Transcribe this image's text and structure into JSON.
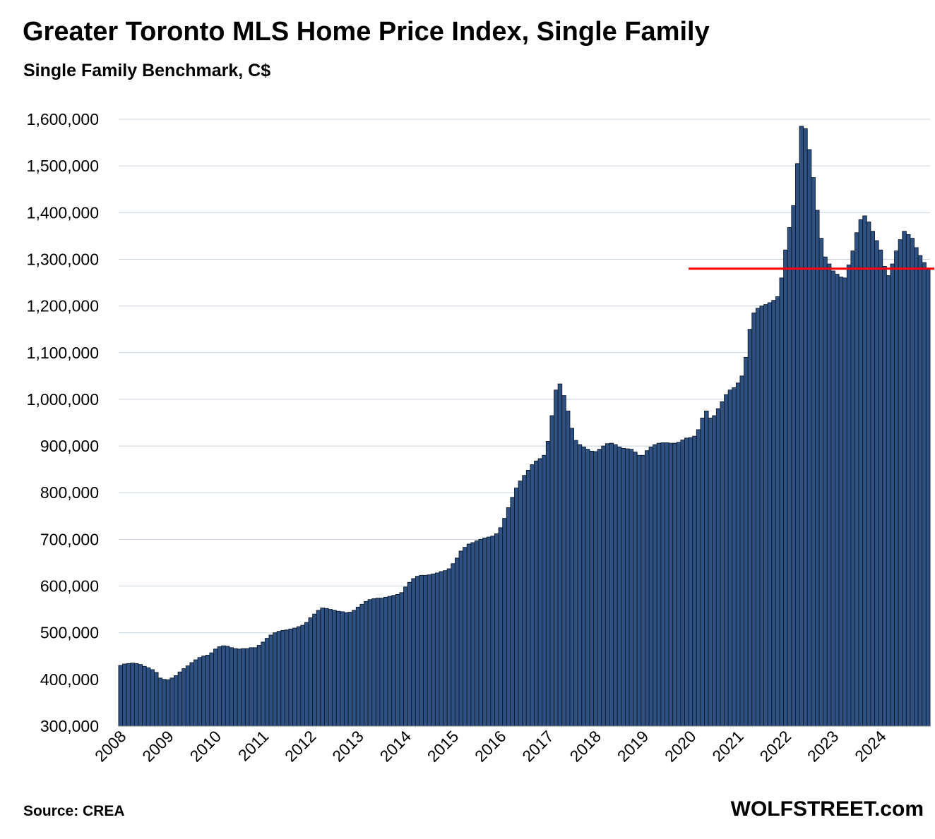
{
  "title": "Greater Toronto MLS Home Price Index, Single Family",
  "subtitle": "Single Family Benchmark, C$",
  "source": "Source: CREA",
  "brand": "WOLFSTREET.com",
  "colors": {
    "bar": "#2e5182",
    "bar_edge": "#0d1a2b",
    "grid": "#c8d3de",
    "reference_line": "#ff0000"
  },
  "chart_data": {
    "type": "bar",
    "ylim": [
      300000,
      1600000
    ],
    "yticks": [
      300000,
      400000,
      500000,
      600000,
      700000,
      800000,
      900000,
      1000000,
      1100000,
      1200000,
      1300000,
      1400000,
      1500000,
      1600000
    ],
    "ytick_labels": [
      "300,000",
      "400,000",
      "500,000",
      "600,000",
      "700,000",
      "800,000",
      "900,000",
      "1,000,000",
      "1,100,000",
      "1,200,000",
      "1,300,000",
      "1,400,000",
      "1,500,000",
      "1,600,000"
    ],
    "xtick_labels": [
      "2008",
      "2009",
      "2010",
      "2011",
      "2012",
      "2013",
      "2014",
      "2015",
      "2016",
      "2017",
      "2018",
      "2019",
      "2020",
      "2021",
      "2022",
      "2023",
      "2024"
    ],
    "grid": true,
    "start": "2008-01",
    "values": [
      430000,
      433000,
      434000,
      435000,
      434000,
      432000,
      428000,
      425000,
      421000,
      415000,
      403000,
      400000,
      399000,
      403000,
      408000,
      416000,
      423000,
      429000,
      436000,
      442000,
      447000,
      450000,
      452000,
      457000,
      465000,
      470000,
      472000,
      471000,
      468000,
      466000,
      465000,
      466000,
      466000,
      468000,
      468000,
      473000,
      480000,
      488000,
      495000,
      500000,
      503000,
      505000,
      506000,
      508000,
      510000,
      513000,
      516000,
      522000,
      532000,
      540000,
      548000,
      553000,
      552000,
      550000,
      548000,
      546000,
      545000,
      543000,
      544000,
      548000,
      555000,
      561000,
      567000,
      571000,
      573000,
      574000,
      574000,
      576000,
      578000,
      580000,
      582000,
      586000,
      598000,
      608000,
      616000,
      621000,
      623000,
      623000,
      624000,
      626000,
      628000,
      631000,
      633000,
      637000,
      648000,
      660000,
      675000,
      683000,
      690000,
      693000,
      697000,
      700000,
      703000,
      705000,
      707000,
      712000,
      725000,
      745000,
      768000,
      790000,
      810000,
      825000,
      837000,
      848000,
      860000,
      868000,
      873000,
      880000,
      910000,
      965000,
      1020000,
      1033000,
      1008000,
      975000,
      938000,
      912000,
      903000,
      898000,
      893000,
      889000,
      888000,
      893000,
      900000,
      905000,
      906000,
      903000,
      898000,
      895000,
      894000,
      893000,
      887000,
      880000,
      880000,
      890000,
      898000,
      903000,
      906000,
      907000,
      907000,
      906000,
      906000,
      908000,
      913000,
      917000,
      918000,
      921000,
      935000,
      960000,
      975000,
      960000,
      965000,
      980000,
      995000,
      1010000,
      1020000,
      1025000,
      1035000,
      1050000,
      1090000,
      1150000,
      1185000,
      1195000,
      1200000,
      1203000,
      1207000,
      1212000,
      1220000,
      1260000,
      1320000,
      1368000,
      1415000,
      1505000,
      1585000,
      1580000,
      1535000,
      1475000,
      1405000,
      1345000,
      1305000,
      1290000,
      1275000,
      1268000,
      1262000,
      1260000,
      1288000,
      1318000,
      1357000,
      1385000,
      1393000,
      1380000,
      1360000,
      1340000,
      1320000,
      1285000,
      1265000,
      1290000,
      1318000,
      1342000,
      1360000,
      1353000,
      1345000,
      1325000,
      1308000,
      1293000,
      1280000
    ],
    "reference_line": {
      "value": 1280000
    }
  }
}
